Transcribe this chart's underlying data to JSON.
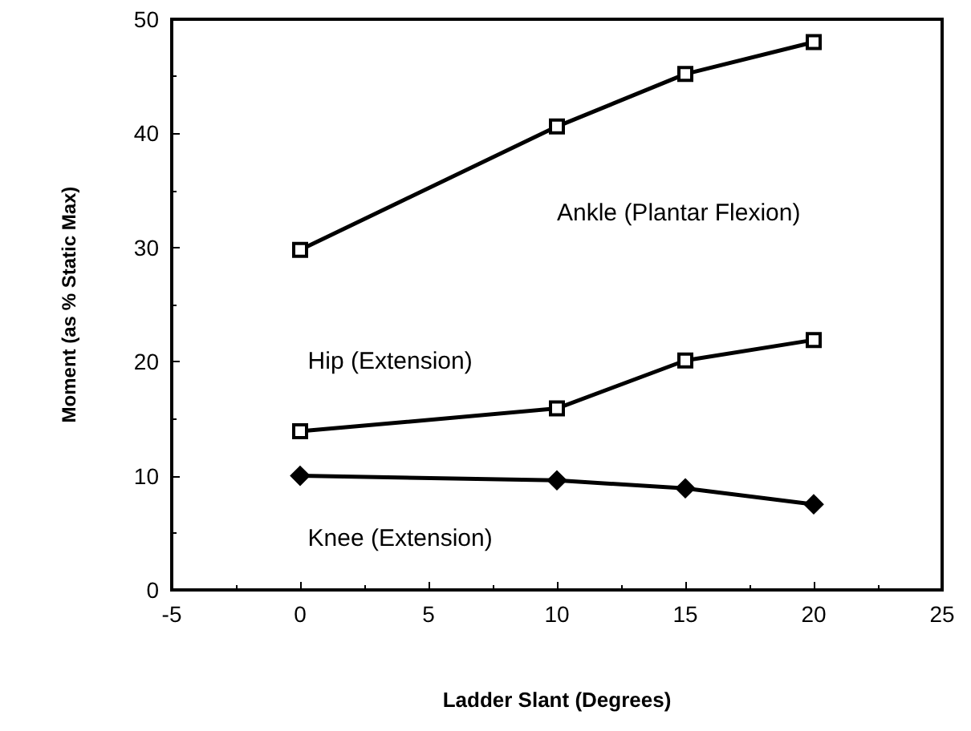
{
  "chart_data": {
    "type": "line",
    "xlabel": "Ladder Slant (Degrees)",
    "ylabel": "Moment (as % Static Max)",
    "x": [
      0,
      10,
      15,
      20
    ],
    "series": [
      {
        "name": "Ankle (Plantar Flexion)",
        "color": "#000000",
        "marker": "square",
        "values": [
          29.8,
          40.6,
          45.2,
          48
        ]
      },
      {
        "name": "Hip (Extension)",
        "color": "#000000",
        "marker": "square",
        "values": [
          13.9,
          15.9,
          20.1,
          21.9
        ]
      },
      {
        "name": "Knee (Extension)",
        "color": "#000000",
        "marker": "diamond",
        "values": [
          10,
          9.6,
          8.9,
          7.5
        ]
      }
    ],
    "xlim": [
      -5,
      25
    ],
    "xticks": [
      -5,
      0,
      5,
      10,
      15,
      20,
      25
    ],
    "ylim": [
      0,
      50
    ],
    "yticks": [
      0,
      10,
      20,
      30,
      40,
      50
    ],
    "grid": false,
    "legend": false,
    "line_style": "solid"
  }
}
